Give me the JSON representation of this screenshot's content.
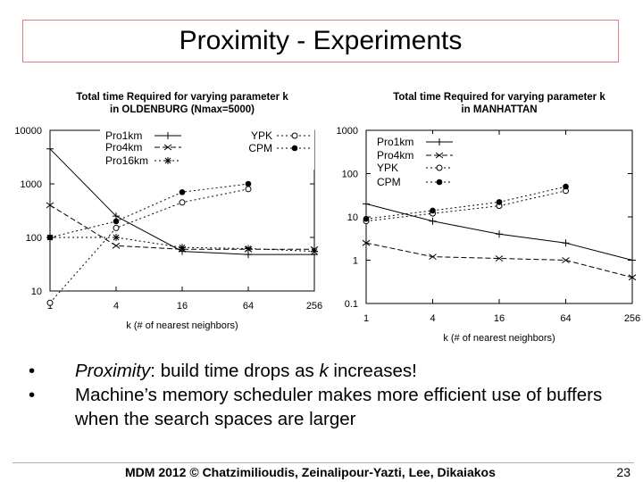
{
  "slide": {
    "title": "Proximity - Experiments",
    "bullets": [
      {
        "symbol": "•",
        "lead": "Proximity",
        "rest_pre": ": build time drops as ",
        "k": "k",
        "rest_post": " increases!"
      },
      {
        "symbol": "•",
        "text": "Machine’s memory scheduler makes more efficient use of buffers when the search spaces are larger"
      }
    ],
    "footer": "MDM 2012 © Chatzimilioudis, Zeinalipour-Yazti, Lee, Dikaiakos",
    "page_number": "23"
  },
  "chart_data": [
    {
      "type": "line",
      "title_line1": "Total time Required for varying parameter k",
      "title_line2": "in OLDENBURG (Nmax=5000)",
      "xlabel": "k (# of nearest neighbors)",
      "x": [
        1,
        4,
        16,
        64,
        256
      ],
      "x_scale": "log",
      "y_scale": "log",
      "ylim": [
        10,
        10000
      ],
      "yticks": [
        "10",
        "100",
        "1000",
        "10000"
      ],
      "xticks": [
        "1",
        "4",
        "16",
        "64",
        "256"
      ],
      "grid": false,
      "legend_position": "top",
      "series": [
        {
          "name": "Pro1km",
          "marker": "plus",
          "dash": "solid",
          "values": [
            4500,
            250,
            55,
            48,
            48
          ]
        },
        {
          "name": "Pro4km",
          "marker": "x",
          "dash": "dashed",
          "values": [
            400,
            70,
            60,
            60,
            60
          ]
        },
        {
          "name": "Pro16km",
          "marker": "star",
          "dash": "dotted",
          "values": [
            100,
            100,
            65,
            62,
            55
          ]
        },
        {
          "name": "YPK",
          "marker": "open-circle",
          "dash": "dotted",
          "values": [
            6,
            150,
            450,
            800,
            null
          ]
        },
        {
          "name": "CPM",
          "marker": "filled-circle",
          "dash": "dotted",
          "values": [
            100,
            200,
            700,
            1000,
            null
          ]
        }
      ]
    },
    {
      "type": "line",
      "title_line1": "Total time Required for varying parameter k",
      "title_line2": "in MANHATTAN",
      "xlabel": "k (# of nearest neighbors)",
      "x": [
        1,
        4,
        16,
        64,
        256
      ],
      "x_scale": "log",
      "y_scale": "log",
      "ylim": [
        0.1,
        1000
      ],
      "yticks": [
        "0.1",
        "1",
        "10",
        "100",
        "1000"
      ],
      "xticks": [
        "1",
        "4",
        "16",
        "64",
        "256"
      ],
      "grid": false,
      "legend_position": "top-left",
      "series": [
        {
          "name": "Pro1km",
          "marker": "plus",
          "dash": "solid",
          "values": [
            20,
            8,
            4,
            2.5,
            1
          ]
        },
        {
          "name": "Pro4km",
          "marker": "x",
          "dash": "dashed",
          "values": [
            2.5,
            1.2,
            1.1,
            1,
            0.4
          ]
        },
        {
          "name": "YPK",
          "marker": "open-circle",
          "dash": "dotted",
          "values": [
            8,
            12,
            18,
            40,
            null
          ]
        },
        {
          "name": "CPM",
          "marker": "filled-circle",
          "dash": "dotted",
          "values": [
            9,
            14,
            22,
            50,
            null
          ]
        }
      ]
    }
  ]
}
